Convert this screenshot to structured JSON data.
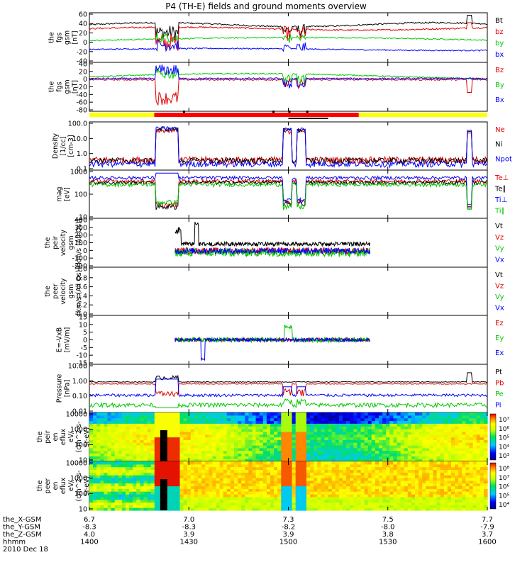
{
  "title": "P4 (TH-E) fields and ground moments overview",
  "colors": {
    "black": "#000000",
    "red": "#e00000",
    "green": "#00c800",
    "blue": "#0000ff",
    "yellow": "#ffff00",
    "barred": "#ff0000"
  },
  "chart_data": [
    {
      "type": "line",
      "name": "fgs-gsm",
      "ylabel": [
        "the",
        "fgs",
        "gsm",
        "[nT]"
      ],
      "yticks": [
        "60",
        "40",
        "20",
        "0",
        "-20",
        "-40"
      ],
      "ylim": [
        -40,
        60
      ],
      "legend": [
        {
          "label": "Bt",
          "color": "#000000"
        },
        {
          "label": "bz",
          "color": "#e00000"
        },
        {
          "label": "by",
          "color": "#00c800"
        },
        {
          "label": "bx",
          "color": "#0000ff"
        }
      ]
    },
    {
      "type": "line",
      "name": "fgs-gse",
      "ylabel": [
        "the",
        "fgs",
        "gsm",
        "[nT]"
      ],
      "yticks": [
        "40",
        "20",
        "0",
        "-20",
        "-40",
        "-60",
        "-80"
      ],
      "ylim": [
        -90,
        40
      ],
      "legend": [
        {
          "label": "Bz",
          "color": "#e00000"
        },
        {
          "label": "By",
          "color": "#00c800"
        },
        {
          "label": "Bx",
          "color": "#0000ff"
        }
      ]
    },
    {
      "type": "line",
      "name": "density",
      "scale": "log",
      "ylabel": [
        "Density",
        "[1/cc]",
        "[cm-3]"
      ],
      "yticks": [
        "100.0",
        "10.0",
        "1.0",
        "0.1"
      ],
      "ylim": [
        0.1,
        100
      ],
      "legend": [
        {
          "label": "Ne",
          "color": "#e00000"
        },
        {
          "label": "Ni",
          "color": "#000000"
        },
        {
          "label": "Npot",
          "color": "#0000ff"
        }
      ]
    },
    {
      "type": "line",
      "name": "temperature",
      "scale": "log",
      "ylabel": [
        "mag",
        "[eV]"
      ],
      "yticks": [
        "1000",
        "100",
        "10"
      ],
      "ylim": [
        5,
        8000
      ],
      "legend": [
        {
          "label": "Te⊥",
          "color": "#e00000"
        },
        {
          "label": "Te∥",
          "color": "#000000"
        },
        {
          "label": "Ti⊥",
          "color": "#0000ff"
        },
        {
          "label": "Ti∥",
          "color": "#00c800"
        }
      ]
    },
    {
      "type": "line",
      "name": "peir-velocity",
      "ylabel": [
        "the",
        "peir",
        "velocity",
        "gsm",
        "[km/s (All Qs)]"
      ],
      "yticks": [
        "400",
        "300",
        "200",
        "100",
        "0",
        "-100",
        "-200"
      ],
      "ylim": [
        -200,
        400
      ],
      "legend": [
        {
          "label": "Vt",
          "color": "#000000"
        },
        {
          "label": "Vz",
          "color": "#e00000"
        },
        {
          "label": "Vy",
          "color": "#00c800"
        },
        {
          "label": "Vx",
          "color": "#0000ff"
        }
      ]
    },
    {
      "type": "line",
      "name": "peer-velocity",
      "ylabel": [
        "the",
        "peer",
        "velocity",
        "gsm",
        "[km/s (All Qs)]"
      ],
      "yticks": [
        "1.0",
        "0.8",
        "0.6",
        "0.4",
        "0.2",
        "0.0"
      ],
      "ylim": [
        0,
        1
      ],
      "legend": [
        {
          "label": "Vt",
          "color": "#000000"
        },
        {
          "label": "Vz",
          "color": "#e00000"
        },
        {
          "label": "Vy",
          "color": "#00c800"
        },
        {
          "label": "Vx",
          "color": "#0000ff"
        }
      ]
    },
    {
      "type": "line",
      "name": "efield",
      "ylabel": [
        "E=-VxB",
        "[mV/m]"
      ],
      "yticks": [
        "15",
        "10",
        "5",
        "0",
        "-5",
        "-10",
        "-15"
      ],
      "ylim": [
        -15,
        15
      ],
      "legend": [
        {
          "label": "Ez",
          "color": "#e00000"
        },
        {
          "label": "Ey",
          "color": "#00c800"
        },
        {
          "label": "Ex",
          "color": "#0000ff"
        }
      ]
    },
    {
      "type": "line",
      "name": "pressure",
      "scale": "log",
      "ylabel": [
        "Pressure",
        "[nPa]"
      ],
      "yticks": [
        "10.00",
        "1.00",
        "0.10",
        "0.01"
      ],
      "ylim": [
        0.01,
        10
      ],
      "legend": [
        {
          "label": "Pt",
          "color": "#000000"
        },
        {
          "label": "Pb",
          "color": "#e00000"
        },
        {
          "label": "Pe",
          "color": "#00c800"
        },
        {
          "label": "Pi",
          "color": "#0000ff"
        }
      ]
    },
    {
      "type": "heatmap",
      "name": "peir-en-eflux",
      "scale": "log",
      "ylabel": [
        "the",
        "peir",
        "en",
        "eflux",
        "eV/",
        "(cm^2-s-",
        "sr-eV)"
      ],
      "yticks": [
        "10000",
        "1000",
        "100",
        "10"
      ],
      "ylim": [
        6,
        25000
      ],
      "colorbar": [
        "10⁷",
        "10⁶",
        "10⁵",
        "10⁴",
        "10³"
      ]
    },
    {
      "type": "heatmap",
      "name": "peer-en-eflux",
      "scale": "log",
      "ylabel": [
        "the",
        "peer",
        "en",
        "eflux",
        "eV/",
        "(cm^2-s-",
        "sr-eV)"
      ],
      "yticks": [
        "10000",
        "1000",
        "100",
        "10"
      ],
      "ylim": [
        6,
        25000
      ],
      "colorbar": [
        "10⁸",
        "10⁷",
        "10⁶",
        "10⁵",
        "10⁴"
      ]
    }
  ],
  "axis": {
    "rows": [
      {
        "label": "the_X-GSM",
        "values": [
          "6.7",
          "7.0",
          "7.3",
          "7.5",
          "7.7"
        ]
      },
      {
        "label": "the_Y-GSM",
        "values": [
          "-8.3",
          "-8.3",
          "-8.2",
          "-8.0",
          "-7.9"
        ]
      },
      {
        "label": "the_Z-GSM",
        "values": [
          "4.0",
          "3.9",
          "3.9",
          "3.8",
          "3.7"
        ]
      },
      {
        "label": "hhmm",
        "values": [
          "1400",
          "1430",
          "1500",
          "1530",
          "1600"
        ]
      }
    ],
    "date": "2010 Dec 18"
  }
}
